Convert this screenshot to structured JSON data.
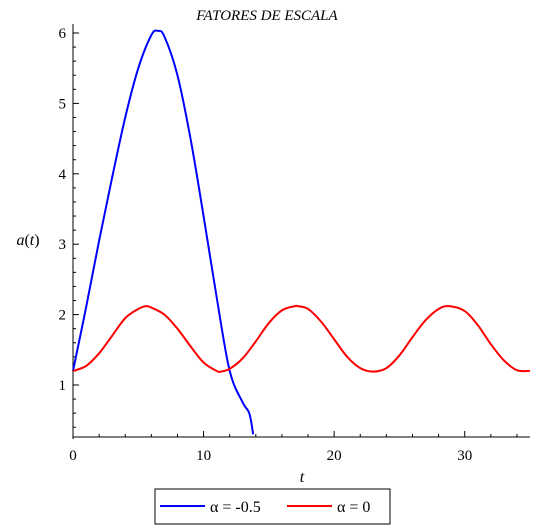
{
  "chart_data": {
    "type": "line",
    "title": "FATORES DE ESCALA",
    "xlabel": "t",
    "ylabel": "a(t)",
    "xlim": [
      0,
      35
    ],
    "ylim": [
      0.3,
      6.1
    ],
    "x_ticks": [
      0,
      10,
      20,
      30
    ],
    "y_ticks": [
      1,
      2,
      3,
      4,
      5,
      6
    ],
    "grid": false,
    "legend_position": "bottom",
    "series": [
      {
        "name": "α = -0.5",
        "color": "#0000ff",
        "x": [
          0,
          1,
          2,
          3,
          4,
          5,
          6,
          6.5,
          7,
          8,
          9,
          10,
          11,
          12,
          13,
          13.5,
          13.8
        ],
        "y": [
          1.2,
          2.1,
          3.05,
          3.95,
          4.8,
          5.5,
          5.97,
          6.03,
          5.95,
          5.4,
          4.5,
          3.4,
          2.25,
          1.2,
          0.75,
          0.6,
          0.3
        ]
      },
      {
        "name": "α = 0",
        "color": "#ff0000",
        "x": [
          0,
          1,
          2,
          3,
          4,
          5,
          5.6,
          6,
          7,
          8,
          9,
          10,
          11,
          11.3,
          12,
          13,
          14,
          15,
          16,
          17,
          17.2,
          18,
          19,
          20,
          21,
          22,
          23,
          24,
          25,
          26,
          27,
          28,
          28.8,
          30,
          31,
          32,
          33,
          34,
          35
        ],
        "y": [
          1.2,
          1.27,
          1.45,
          1.7,
          1.95,
          2.08,
          2.12,
          2.1,
          2.0,
          1.8,
          1.55,
          1.32,
          1.2,
          1.19,
          1.23,
          1.38,
          1.62,
          1.88,
          2.06,
          2.12,
          2.12,
          2.08,
          1.9,
          1.65,
          1.4,
          1.24,
          1.19,
          1.24,
          1.42,
          1.68,
          1.92,
          2.08,
          2.12,
          2.05,
          1.85,
          1.58,
          1.35,
          1.21,
          1.2
        ]
      }
    ]
  }
}
